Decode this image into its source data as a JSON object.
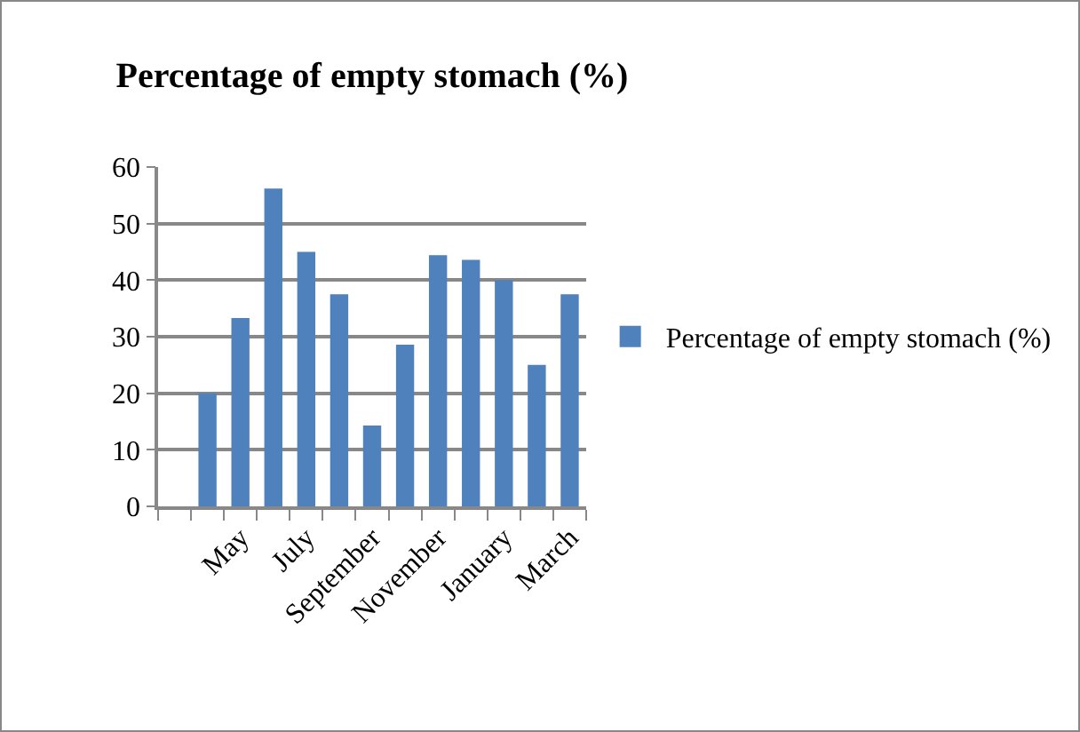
{
  "chart_data": {
    "type": "bar",
    "title": "Percentage of empty stomach (%)",
    "categories": [
      null,
      null,
      "May",
      null,
      "July",
      null,
      "September",
      null,
      "November",
      null,
      "January",
      null,
      "March"
    ],
    "series": [
      {
        "name": "Percentage of empty stomach (%)",
        "color": "#4f81bd",
        "values": [
          null,
          20,
          33.3,
          56.2,
          45,
          37.5,
          14.3,
          28.6,
          44.4,
          43.6,
          40,
          25,
          37.5
        ]
      }
    ],
    "ylim": [
      0,
      60
    ],
    "yticks": [
      0,
      10,
      20,
      30,
      40,
      50,
      60
    ],
    "grid": "y",
    "legend": "right"
  }
}
